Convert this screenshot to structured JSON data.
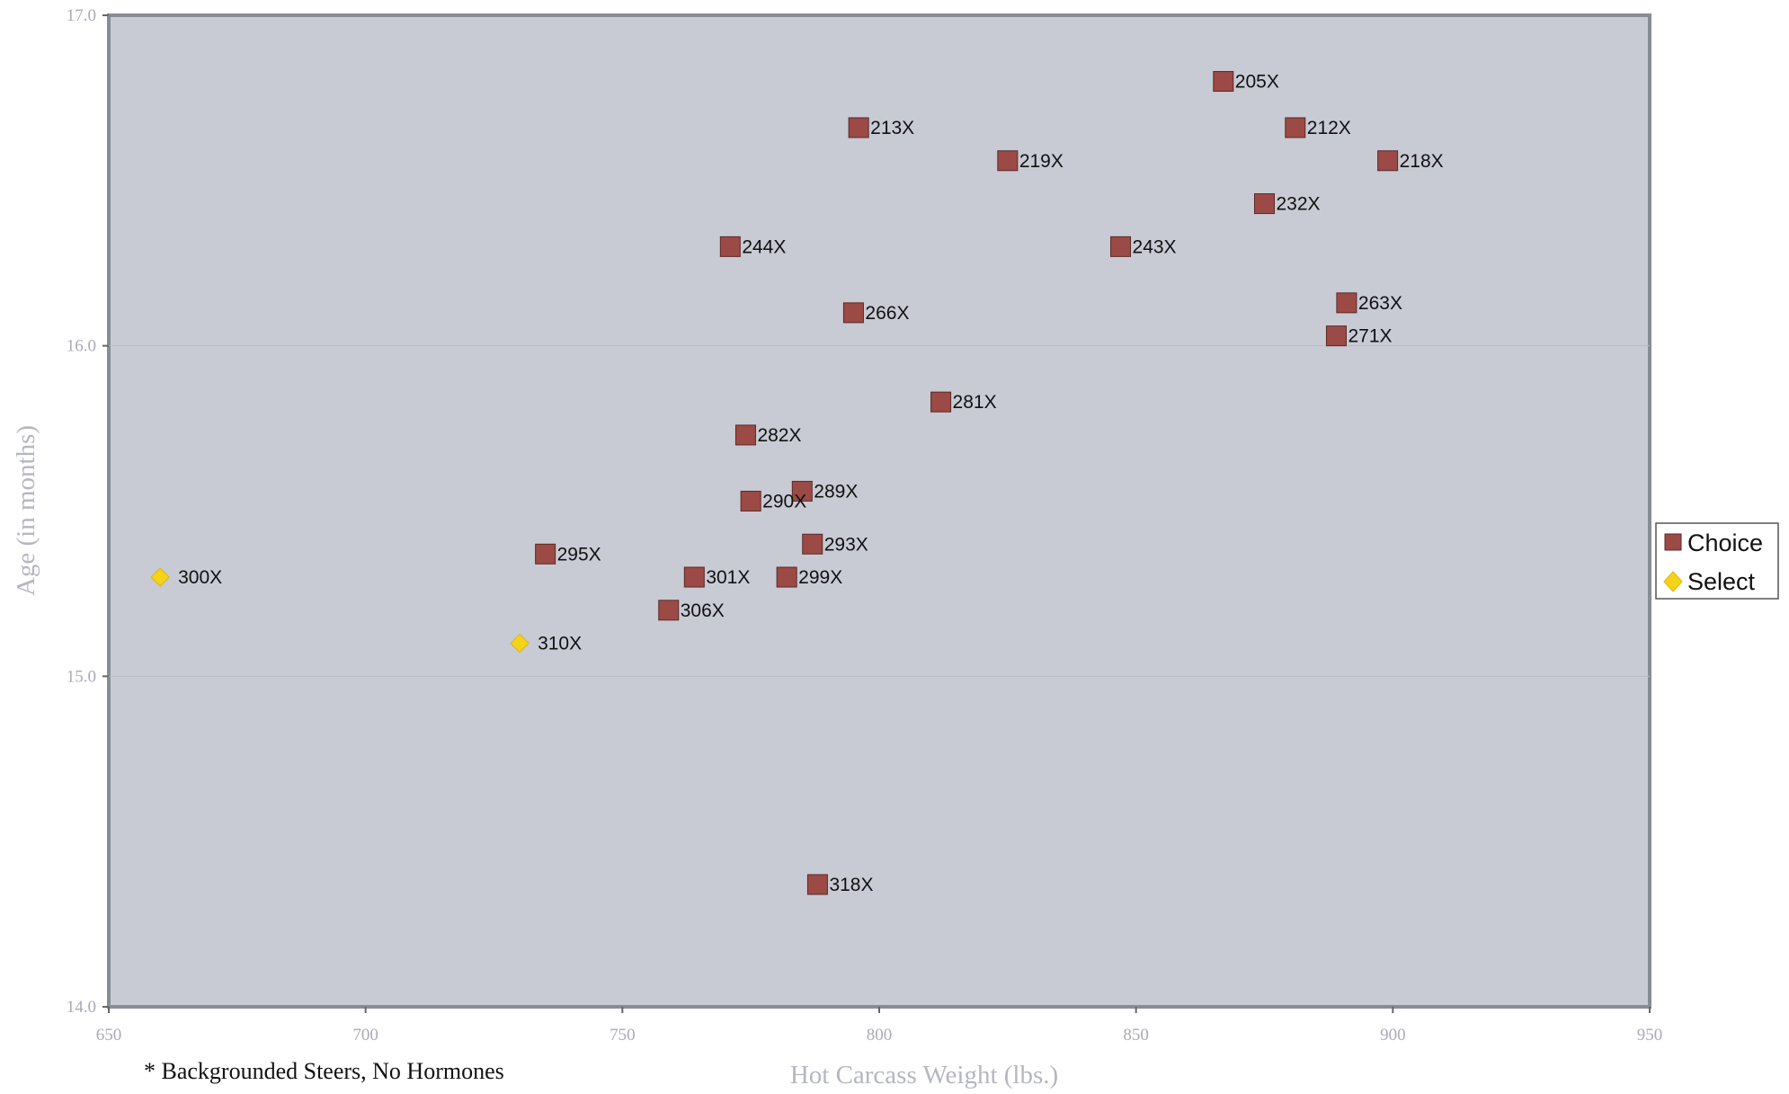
{
  "chart_data": {
    "type": "scatter",
    "xlabel": "Hot Carcass Weight (lbs.)",
    "ylabel": "Age (in months)",
    "xlim": [
      650,
      950
    ],
    "ylim": [
      14.0,
      17.0
    ],
    "x_ticks": [
      "650",
      "700",
      "750",
      "800",
      "850",
      "900",
      "950"
    ],
    "y_ticks": [
      "14.0",
      "15.0",
      "16.0",
      "17.0"
    ],
    "grid": "horizontal",
    "legend_position": "right",
    "footnote": "* Backgrounded Steers, No Hormones",
    "series": [
      {
        "name": "Choice",
        "color": "#9b4a45",
        "marker": "square",
        "points": [
          {
            "label": "205X",
            "x": 867,
            "y": 16.8
          },
          {
            "label": "212X",
            "x": 881,
            "y": 16.66
          },
          {
            "label": "213X",
            "x": 796,
            "y": 16.66
          },
          {
            "label": "218X",
            "x": 899,
            "y": 16.56
          },
          {
            "label": "219X",
            "x": 825,
            "y": 16.56
          },
          {
            "label": "232X",
            "x": 875,
            "y": 16.43
          },
          {
            "label": "244X",
            "x": 771,
            "y": 16.3
          },
          {
            "label": "243X",
            "x": 847,
            "y": 16.3
          },
          {
            "label": "263X",
            "x": 891,
            "y": 16.13
          },
          {
            "label": "266X",
            "x": 795,
            "y": 16.1
          },
          {
            "label": "271X",
            "x": 889,
            "y": 16.03
          },
          {
            "label": "281X",
            "x": 812,
            "y": 15.83
          },
          {
            "label": "282X",
            "x": 774,
            "y": 15.73
          },
          {
            "label": "289X",
            "x": 785,
            "y": 15.56
          },
          {
            "label": "290X",
            "x": 775,
            "y": 15.53
          },
          {
            "label": "293X",
            "x": 787,
            "y": 15.4
          },
          {
            "label": "295X",
            "x": 735,
            "y": 15.37
          },
          {
            "label": "301X",
            "x": 764,
            "y": 15.3
          },
          {
            "label": "299X",
            "x": 782,
            "y": 15.3
          },
          {
            "label": "306X",
            "x": 759,
            "y": 15.2
          },
          {
            "label": "318X",
            "x": 788,
            "y": 14.37
          }
        ]
      },
      {
        "name": "Select",
        "color": "#f5d31a",
        "marker": "diamond",
        "points": [
          {
            "label": "300X",
            "x": 660,
            "y": 15.3
          },
          {
            "label": "310X",
            "x": 730,
            "y": 15.1
          }
        ]
      }
    ]
  }
}
